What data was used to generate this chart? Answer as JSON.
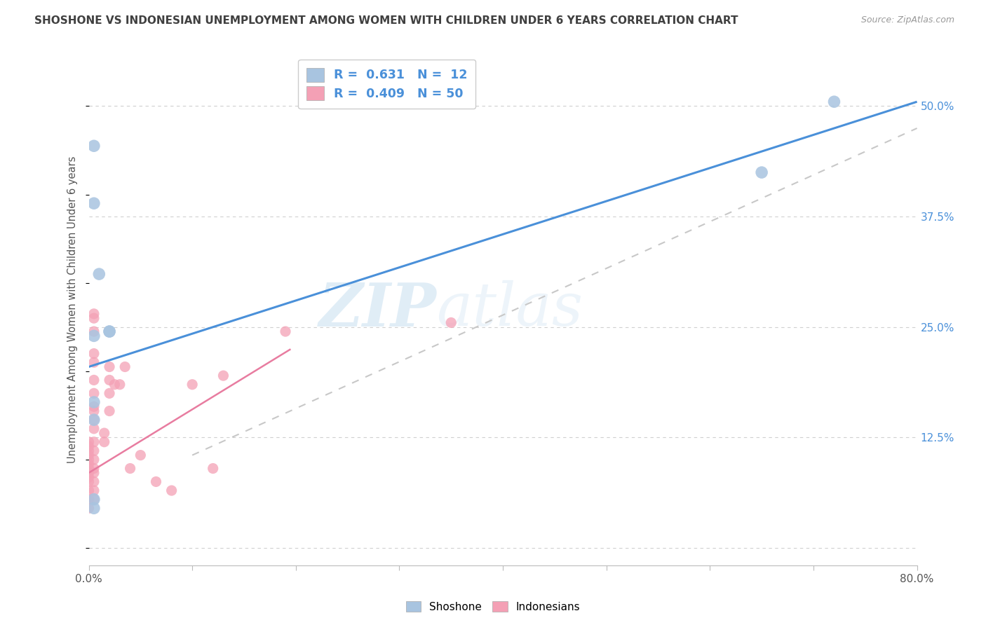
{
  "title": "SHOSHONE VS INDONESIAN UNEMPLOYMENT AMONG WOMEN WITH CHILDREN UNDER 6 YEARS CORRELATION CHART",
  "source": "Source: ZipAtlas.com",
  "ylabel": "Unemployment Among Women with Children Under 6 years",
  "xlim": [
    0.0,
    0.8
  ],
  "ylim": [
    -0.02,
    0.56
  ],
  "xticks": [
    0.0,
    0.1,
    0.2,
    0.3,
    0.4,
    0.5,
    0.6,
    0.7,
    0.8
  ],
  "xticklabels": [
    "0.0%",
    "",
    "",
    "",
    "",
    "",
    "",
    "",
    "80.0%"
  ],
  "yticks_right": [
    0.0,
    0.125,
    0.25,
    0.375,
    0.5
  ],
  "ytick_labels_right": [
    "",
    "12.5%",
    "25.0%",
    "37.5%",
    "50.0%"
  ],
  "watermark": "ZIPatlas",
  "shoshone_color": "#a8c4e0",
  "indonesian_color": "#f4a0b5",
  "shoshone_line_color": "#4a90d9",
  "indonesian_line_color": "#e87ca0",
  "gray_dashed_color": "#c8c8c8",
  "background_color": "#ffffff",
  "grid_color": "#d0d0d0",
  "title_color": "#404040",
  "right_label_color": "#4a90d9",
  "legend_label_1": "R =  0.631   N =  12",
  "legend_label_2": "R =  0.409   N = 50",
  "shoshone_line": {
    "x0": 0.0,
    "y0": 0.205,
    "x1": 0.8,
    "y1": 0.505
  },
  "indonesian_solid_line": {
    "x0": 0.0,
    "y0": 0.085,
    "x1": 0.195,
    "y1": 0.225
  },
  "indonesian_dashed_line": {
    "x0": 0.1,
    "y0": 0.105,
    "x1": 0.8,
    "y1": 0.475
  },
  "shoshone_scatter": [
    [
      0.005,
      0.455
    ],
    [
      0.005,
      0.39
    ],
    [
      0.01,
      0.31
    ],
    [
      0.02,
      0.245
    ],
    [
      0.02,
      0.245
    ],
    [
      0.005,
      0.24
    ],
    [
      0.005,
      0.165
    ],
    [
      0.005,
      0.055
    ],
    [
      0.005,
      0.045
    ],
    [
      0.65,
      0.425
    ],
    [
      0.72,
      0.505
    ],
    [
      0.005,
      0.145
    ]
  ],
  "indonesian_scatter": [
    [
      0.0,
      0.045
    ],
    [
      0.0,
      0.055
    ],
    [
      0.0,
      0.065
    ],
    [
      0.0,
      0.075
    ],
    [
      0.0,
      0.08
    ],
    [
      0.0,
      0.085
    ],
    [
      0.0,
      0.09
    ],
    [
      0.0,
      0.095
    ],
    [
      0.0,
      0.1
    ],
    [
      0.0,
      0.105
    ],
    [
      0.0,
      0.11
    ],
    [
      0.0,
      0.115
    ],
    [
      0.0,
      0.12
    ],
    [
      0.005,
      0.055
    ],
    [
      0.005,
      0.065
    ],
    [
      0.005,
      0.075
    ],
    [
      0.005,
      0.085
    ],
    [
      0.005,
      0.09
    ],
    [
      0.005,
      0.1
    ],
    [
      0.005,
      0.11
    ],
    [
      0.005,
      0.12
    ],
    [
      0.005,
      0.135
    ],
    [
      0.005,
      0.155
    ],
    [
      0.005,
      0.175
    ],
    [
      0.005,
      0.19
    ],
    [
      0.005,
      0.21
    ],
    [
      0.005,
      0.245
    ],
    [
      0.005,
      0.265
    ],
    [
      0.015,
      0.12
    ],
    [
      0.015,
      0.13
    ],
    [
      0.02,
      0.155
    ],
    [
      0.02,
      0.175
    ],
    [
      0.02,
      0.19
    ],
    [
      0.02,
      0.205
    ],
    [
      0.025,
      0.185
    ],
    [
      0.03,
      0.185
    ],
    [
      0.035,
      0.205
    ],
    [
      0.04,
      0.09
    ],
    [
      0.05,
      0.105
    ],
    [
      0.065,
      0.075
    ],
    [
      0.08,
      0.065
    ],
    [
      0.1,
      0.185
    ],
    [
      0.12,
      0.09
    ],
    [
      0.13,
      0.195
    ],
    [
      0.19,
      0.245
    ],
    [
      0.35,
      0.255
    ],
    [
      0.005,
      0.26
    ],
    [
      0.005,
      0.22
    ],
    [
      0.005,
      0.16
    ],
    [
      0.005,
      0.145
    ]
  ]
}
